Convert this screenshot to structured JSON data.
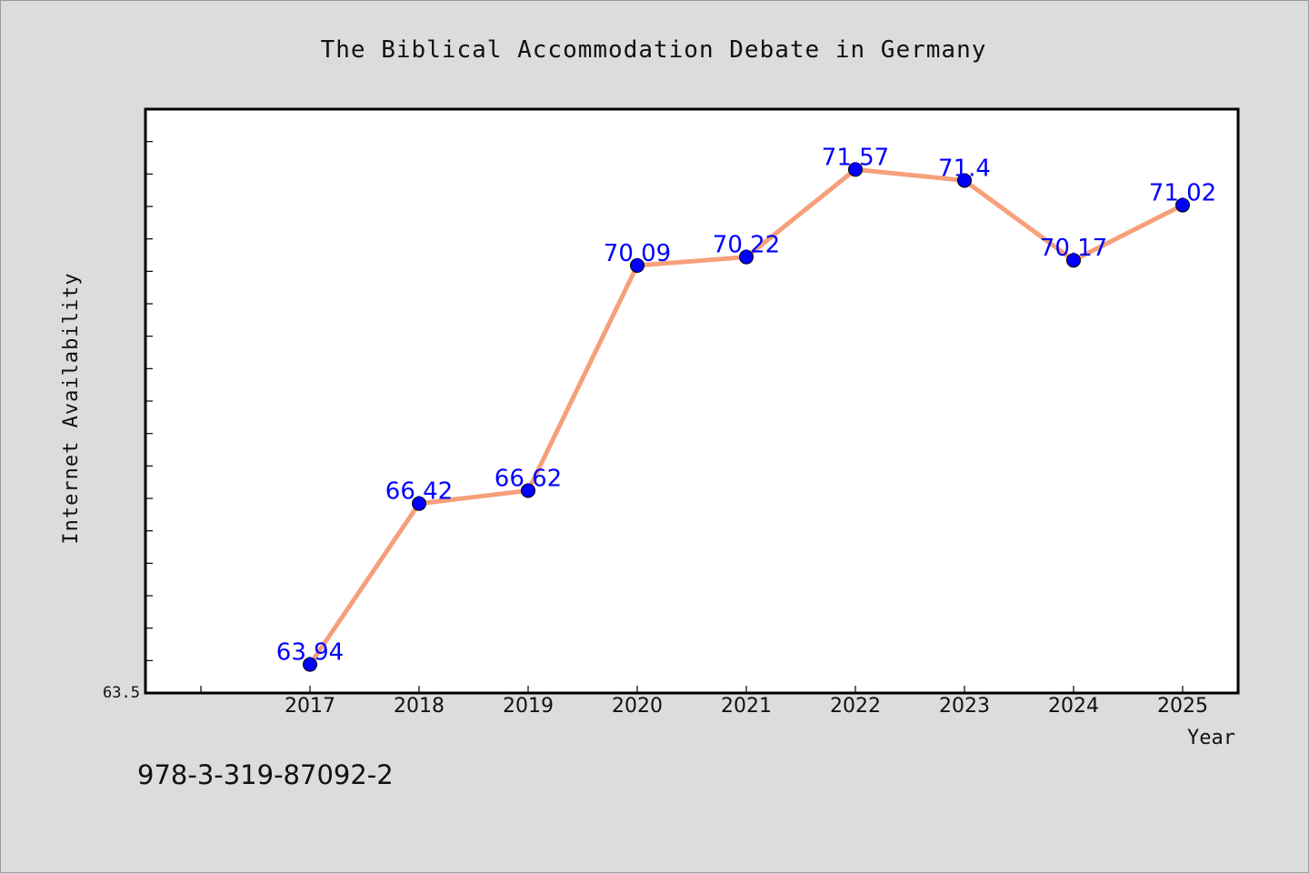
{
  "caption": "978-3-319-87092-2",
  "chart_data": {
    "type": "line",
    "title": "The Biblical Accommodation Debate in Germany",
    "xlabel": "Year",
    "ylabel": "Internet Availability",
    "categories": [
      "2017",
      "2018",
      "2019",
      "2020",
      "2021",
      "2022",
      "2023",
      "2024",
      "2025"
    ],
    "values": [
      63.94,
      66.42,
      66.62,
      70.09,
      70.22,
      71.57,
      71.4,
      70.17,
      71.02
    ],
    "data_labels": [
      "63.94",
      "66.42",
      "66.62",
      "70.09",
      "70.22",
      "71.57",
      "71.4",
      "70.17",
      "71.02"
    ],
    "ylim": [
      63.5,
      72.5
    ],
    "y_tick_label": "63.5",
    "grid": false,
    "colors": {
      "line": "#f5a07a",
      "marker": "#0000ff",
      "data_label": "#0000ff",
      "plot_bg": "#ffffff",
      "page_bg": "#dcdcdc"
    }
  }
}
